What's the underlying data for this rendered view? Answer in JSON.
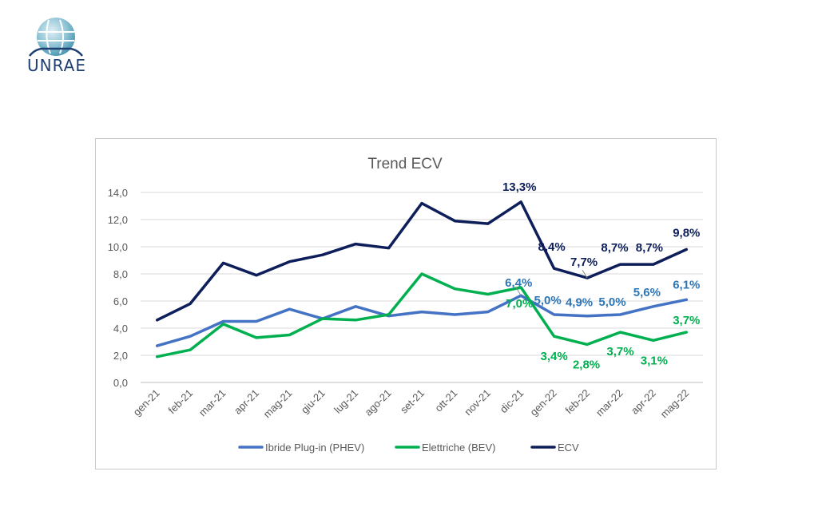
{
  "logo": {
    "text": "UNRAE"
  },
  "colors": {
    "phev": "#4472c4",
    "bev": "#00b050",
    "ecv": "#0d1e5a",
    "phev_label": "#2e75b6",
    "grid": "#d9d9d9",
    "axis_text": "#595959"
  },
  "chart_data": {
    "type": "line",
    "title": "Trend ECV",
    "xlabel": "",
    "ylabel": "",
    "ylim": [
      0,
      14
    ],
    "yticks": [
      "0,0",
      "2,0",
      "4,0",
      "6,0",
      "8,0",
      "10,0",
      "12,0",
      "14,0"
    ],
    "grid": true,
    "legend_position": "bottom",
    "categories": [
      "gen-21",
      "feb-21",
      "mar-21",
      "apr-21",
      "mag-21",
      "giu-21",
      "lug-21",
      "ago-21",
      "set-21",
      "ott-21",
      "nov-21",
      "dic-21",
      "gen-22",
      "feb-22",
      "mar-22",
      "apr-22",
      "mag-22"
    ],
    "series": [
      {
        "name": "Ibride Plug-in (PHEV)",
        "values": [
          2.7,
          3.4,
          4.5,
          4.5,
          5.4,
          4.7,
          5.6,
          4.9,
          5.2,
          5.0,
          5.2,
          6.4,
          5.0,
          4.9,
          5.0,
          5.6,
          6.1
        ]
      },
      {
        "name": "Elettriche (BEV)",
        "values": [
          1.9,
          2.4,
          4.3,
          3.3,
          3.5,
          4.7,
          4.6,
          5.0,
          8.0,
          6.9,
          6.5,
          7.0,
          3.4,
          2.8,
          3.7,
          3.1,
          3.7
        ]
      },
      {
        "name": "ECV",
        "values": [
          4.6,
          5.8,
          8.8,
          7.9,
          8.9,
          9.4,
          10.2,
          9.9,
          13.2,
          11.9,
          11.7,
          13.3,
          8.4,
          7.7,
          8.7,
          8.7,
          9.8
        ]
      }
    ],
    "data_labels": {
      "ECV": [
        "13,3%",
        "8,4%",
        "7,7%",
        "8,7%",
        "8,7%",
        "9,8%"
      ],
      "Ibride Plug-in (PHEV)": [
        "6,4%",
        "5,0%",
        "4,9%",
        "5,0%",
        "5,6%",
        "6,1%"
      ],
      "Elettriche (BEV)": [
        "7,0%",
        "3,4%",
        "2,8%",
        "3,7%",
        "3,1%",
        "3,7%"
      ]
    }
  }
}
